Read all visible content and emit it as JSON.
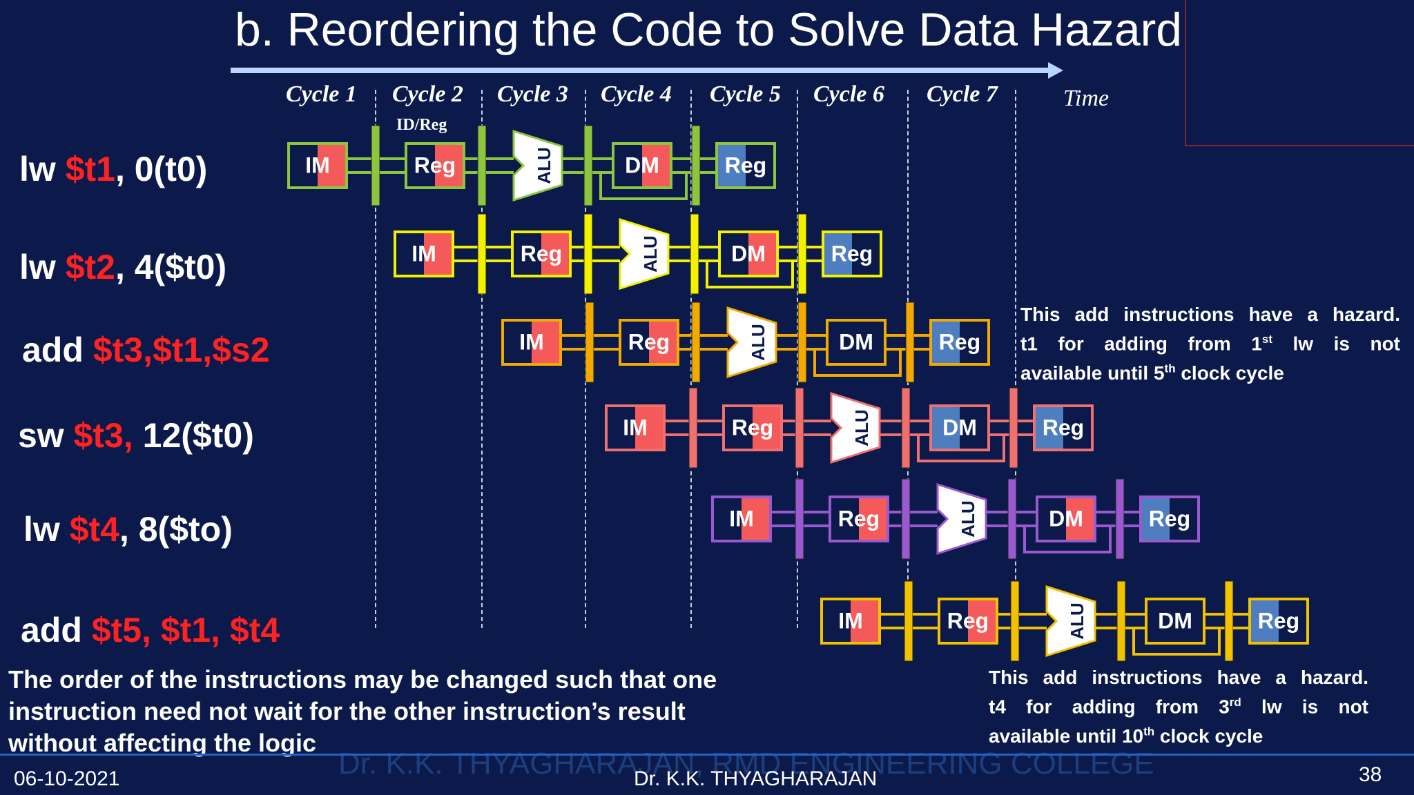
{
  "title": "b. Reordering the Code to Solve Data Hazard",
  "cycles": [
    "Cycle 1",
    "Cycle 2",
    "Cycle 3",
    "Cycle 4",
    "Cycle 5",
    "Cycle 6",
    "Cycle 7"
  ],
  "time_label": "Time",
  "id_reg_label": "ID/Reg",
  "stage_labels": {
    "im": "IM",
    "reg": "Reg",
    "alu": "ALU",
    "dm": "DM",
    "wb": "Reg"
  },
  "instructions": [
    {
      "op": "lw ",
      "reg": "$t1",
      "rest": ", 0(t0)",
      "color": "#8cc63f"
    },
    {
      "op": "lw ",
      "reg": "$t2",
      "rest": ", 4($t0)",
      "color": "#f2f200"
    },
    {
      "op": "add ",
      "reg": "$t3,$t1,$s2",
      "rest": "",
      "color": "#f2a900"
    },
    {
      "op": "sw ",
      "reg": "$t3,",
      "rest": " 12($t0)",
      "color": "#f07070"
    },
    {
      "op": "lw ",
      "reg": "$t4",
      "rest": ", 8($to)",
      "color": "#9b59d0"
    },
    {
      "op": "add ",
      "reg": "$t5, $t1, $t4",
      "rest": "",
      "color": "#f2c200"
    }
  ],
  "note1": {
    "l1": "This add instructions have a hazard.",
    "l2a": "t1 for adding from 1",
    "l2sup": "st",
    "l2b": " lw is not",
    "l3a": "available until 5",
    "l3sup": "th",
    "l3b": " clock cycle"
  },
  "note2": {
    "l1": "This add instructions have a hazard.",
    "l2a": "t4 for adding from 3",
    "l2sup": "rd",
    "l2b": " lw is not",
    "l3a": "available until 10",
    "l3sup": "th",
    "l3b": " clock cycle"
  },
  "bottom_text": {
    "l1": "The order of the instructions may be changed such that one",
    "l2": "instruction need not wait for the other instruction’s result",
    "l3": "without affecting the logic"
  },
  "watermark": "Dr. K.K. THYAGHARAJAN, RMD ENGINEERING COLLEGE",
  "footer": {
    "date": "06-10-2021",
    "author": "Dr. K.K. THYAGHARAJAN",
    "page": "38"
  },
  "colors": {
    "background": "#0b1a4a",
    "red_highlight": "#ff2222",
    "stage_red": "#f55a5a",
    "stage_blue": "#4f7ec0"
  }
}
